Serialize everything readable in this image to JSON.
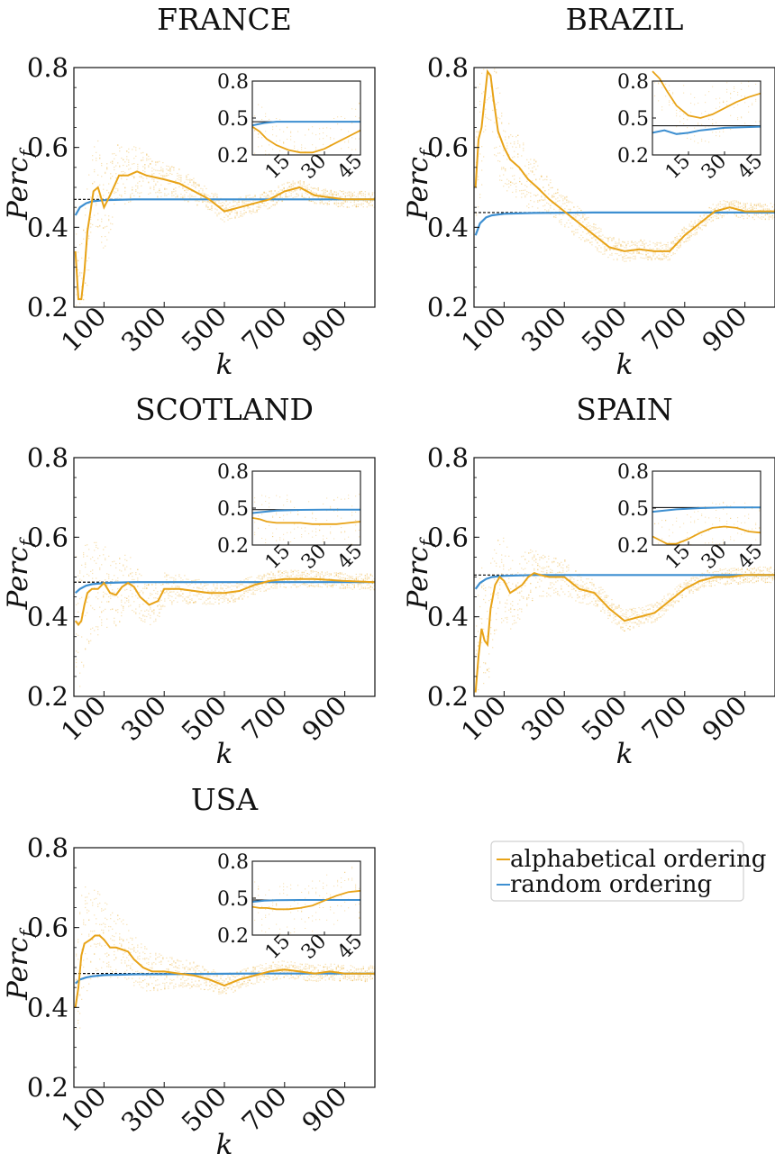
{
  "colors": {
    "alphabetical": "#E8A317",
    "random": "#3D8FD1",
    "reference": "#000000"
  },
  "legend": {
    "items": [
      {
        "label": "alphabetical ordering",
        "color": "#E8A317"
      },
      {
        "label": "random ordering",
        "color": "#3D8FD1"
      }
    ],
    "placement": "lower-right-empty-cell"
  },
  "chart_data": [
    {
      "type": "line",
      "title": "FRANCE",
      "xlabel": "k",
      "ylabel": "Perc_f",
      "ylabel_display": "Perc",
      "ylabel_sub": "f",
      "xlim": [
        0,
        1000
      ],
      "ylim": [
        0.2,
        0.8
      ],
      "xticks": [
        "100",
        "300",
        "500",
        "700",
        "900"
      ],
      "yticks": [
        "0.2",
        "0.4",
        "0.6",
        "0.8"
      ],
      "reference": 0.47,
      "series": [
        {
          "name": "alphabetical ordering",
          "x": [
            5,
            15,
            25,
            35,
            45,
            55,
            65,
            80,
            100,
            120,
            150,
            180,
            210,
            240,
            270,
            300,
            350,
            400,
            450,
            500,
            550,
            600,
            650,
            700,
            750,
            800,
            850,
            900,
            950,
            1000
          ],
          "y": [
            0.34,
            0.22,
            0.22,
            0.29,
            0.39,
            0.44,
            0.49,
            0.5,
            0.45,
            0.48,
            0.53,
            0.53,
            0.54,
            0.53,
            0.525,
            0.52,
            0.51,
            0.49,
            0.47,
            0.44,
            0.45,
            0.46,
            0.47,
            0.49,
            0.5,
            0.48,
            0.475,
            0.47,
            0.47,
            0.47
          ]
        },
        {
          "name": "random ordering",
          "x": [
            5,
            20,
            40,
            60,
            100,
            200,
            400,
            600,
            800,
            1000
          ],
          "y": [
            0.43,
            0.45,
            0.46,
            0.465,
            0.468,
            0.47,
            0.47,
            0.47,
            0.47,
            0.47
          ]
        }
      ],
      "inset": {
        "xlim": [
          0,
          45
        ],
        "ylim": [
          0.2,
          0.8
        ],
        "xticks": [
          "15",
          "30",
          "45"
        ],
        "yticks": [
          "0.2",
          "0.5",
          "0.8"
        ],
        "alphabetical": {
          "x": [
            0,
            3,
            6,
            10,
            15,
            20,
            25,
            30,
            35,
            40,
            45
          ],
          "y": [
            0.43,
            0.39,
            0.33,
            0.28,
            0.24,
            0.22,
            0.22,
            0.25,
            0.3,
            0.35,
            0.4
          ]
        },
        "random": {
          "x": [
            0,
            5,
            10,
            20,
            30,
            45
          ],
          "y": [
            0.44,
            0.46,
            0.47,
            0.47,
            0.47,
            0.47
          ]
        }
      }
    },
    {
      "type": "line",
      "title": "BRAZIL",
      "xlabel": "k",
      "ylabel": "Perc_f",
      "ylabel_display": "Perc",
      "ylabel_sub": "f",
      "xlim": [
        0,
        1000
      ],
      "ylim": [
        0.2,
        0.8
      ],
      "xticks": [
        "100",
        "300",
        "500",
        "700",
        "900"
      ],
      "yticks": [
        "0.2",
        "0.4",
        "0.6",
        "0.8"
      ],
      "reference": 0.437,
      "series": [
        {
          "name": "alphabetical ordering",
          "x": [
            5,
            15,
            25,
            35,
            45,
            55,
            65,
            80,
            100,
            120,
            150,
            180,
            210,
            250,
            300,
            350,
            400,
            450,
            500,
            550,
            600,
            650,
            700,
            750,
            800,
            850,
            900,
            950,
            1000
          ],
          "y": [
            0.5,
            0.62,
            0.65,
            0.72,
            0.79,
            0.78,
            0.72,
            0.64,
            0.6,
            0.57,
            0.55,
            0.52,
            0.5,
            0.47,
            0.44,
            0.41,
            0.38,
            0.35,
            0.34,
            0.345,
            0.34,
            0.34,
            0.38,
            0.41,
            0.44,
            0.45,
            0.44,
            0.44,
            0.44
          ]
        },
        {
          "name": "random ordering",
          "x": [
            5,
            20,
            40,
            60,
            100,
            200,
            400,
            600,
            800,
            1000
          ],
          "y": [
            0.38,
            0.41,
            0.425,
            0.43,
            0.434,
            0.436,
            0.437,
            0.437,
            0.437,
            0.437
          ]
        }
      ],
      "inset": {
        "xlim": [
          0,
          45
        ],
        "ylim": [
          0.2,
          0.8
        ],
        "xticks": [
          "15",
          "30",
          "45"
        ],
        "yticks": [
          "0.2",
          "0.5",
          "0.8"
        ],
        "alphabetical": {
          "x": [
            0,
            3,
            6,
            10,
            15,
            20,
            25,
            30,
            35,
            40,
            45
          ],
          "y": [
            0.88,
            0.82,
            0.72,
            0.6,
            0.52,
            0.5,
            0.53,
            0.58,
            0.63,
            0.67,
            0.7
          ]
        },
        "random": {
          "x": [
            0,
            5,
            10,
            15,
            20,
            30,
            45
          ],
          "y": [
            0.38,
            0.4,
            0.37,
            0.38,
            0.4,
            0.42,
            0.43
          ]
        }
      }
    },
    {
      "type": "line",
      "title": "SCOTLAND",
      "xlabel": "k",
      "ylabel": "Perc_f",
      "ylabel_display": "Perc",
      "ylabel_sub": "f",
      "xlim": [
        0,
        1000
      ],
      "ylim": [
        0.2,
        0.8
      ],
      "xticks": [
        "100",
        "300",
        "500",
        "700",
        "900"
      ],
      "yticks": [
        "0.2",
        "0.4",
        "0.6",
        "0.8"
      ],
      "reference": 0.487,
      "series": [
        {
          "name": "alphabetical ordering",
          "x": [
            5,
            15,
            25,
            35,
            45,
            60,
            80,
            100,
            120,
            140,
            160,
            180,
            200,
            220,
            250,
            280,
            300,
            350,
            400,
            450,
            500,
            550,
            600,
            650,
            700,
            800,
            900,
            1000
          ],
          "y": [
            0.39,
            0.38,
            0.39,
            0.43,
            0.46,
            0.47,
            0.47,
            0.485,
            0.46,
            0.455,
            0.475,
            0.485,
            0.475,
            0.45,
            0.43,
            0.44,
            0.47,
            0.47,
            0.465,
            0.46,
            0.46,
            0.465,
            0.48,
            0.49,
            0.495,
            0.495,
            0.49,
            0.487
          ]
        },
        {
          "name": "random ordering",
          "x": [
            5,
            20,
            40,
            60,
            100,
            200,
            400,
            600,
            800,
            1000
          ],
          "y": [
            0.46,
            0.47,
            0.478,
            0.482,
            0.485,
            0.487,
            0.487,
            0.487,
            0.487,
            0.487
          ]
        }
      ],
      "inset": {
        "xlim": [
          0,
          45
        ],
        "ylim": [
          0.2,
          0.8
        ],
        "xticks": [
          "15",
          "30",
          "45"
        ],
        "yticks": [
          "0.2",
          "0.5",
          "0.8"
        ],
        "alphabetical": {
          "x": [
            0,
            3,
            6,
            10,
            15,
            20,
            25,
            30,
            35,
            40,
            45
          ],
          "y": [
            0.42,
            0.41,
            0.39,
            0.38,
            0.38,
            0.38,
            0.37,
            0.37,
            0.37,
            0.38,
            0.39
          ]
        },
        "random": {
          "x": [
            0,
            5,
            10,
            20,
            30,
            45
          ],
          "y": [
            0.46,
            0.47,
            0.48,
            0.485,
            0.487,
            0.487
          ]
        }
      }
    },
    {
      "type": "line",
      "title": "SPAIN",
      "xlabel": "k",
      "ylabel": "Perc_f",
      "ylabel_display": "Perc",
      "ylabel_sub": "f",
      "xlim": [
        0,
        1000
      ],
      "ylim": [
        0.2,
        0.8
      ],
      "xticks": [
        "100",
        "300",
        "500",
        "700",
        "900"
      ],
      "yticks": [
        "0.2",
        "0.4",
        "0.6",
        "0.8"
      ],
      "reference": 0.505,
      "series": [
        {
          "name": "alphabetical ordering",
          "x": [
            5,
            15,
            25,
            35,
            45,
            55,
            70,
            85,
            100,
            120,
            140,
            160,
            180,
            200,
            220,
            250,
            280,
            300,
            350,
            400,
            450,
            500,
            550,
            600,
            650,
            700,
            750,
            800,
            850,
            900,
            1000
          ],
          "y": [
            0.21,
            0.3,
            0.37,
            0.34,
            0.33,
            0.42,
            0.48,
            0.5,
            0.49,
            0.46,
            0.47,
            0.48,
            0.5,
            0.51,
            0.505,
            0.5,
            0.5,
            0.5,
            0.47,
            0.46,
            0.42,
            0.39,
            0.4,
            0.41,
            0.44,
            0.47,
            0.49,
            0.5,
            0.5,
            0.505,
            0.505
          ]
        },
        {
          "name": "random ordering",
          "x": [
            5,
            20,
            40,
            60,
            100,
            200,
            400,
            600,
            800,
            1000
          ],
          "y": [
            0.47,
            0.485,
            0.495,
            0.5,
            0.503,
            0.505,
            0.505,
            0.505,
            0.505,
            0.505
          ]
        }
      ],
      "inset": {
        "xlim": [
          0,
          45
        ],
        "ylim": [
          0.2,
          0.8
        ],
        "xticks": [
          "15",
          "30",
          "45"
        ],
        "yticks": [
          "0.2",
          "0.5",
          "0.8"
        ],
        "alphabetical": {
          "x": [
            0,
            3,
            6,
            10,
            15,
            20,
            25,
            30,
            35,
            40,
            45
          ],
          "y": [
            0.27,
            0.24,
            0.21,
            0.21,
            0.25,
            0.3,
            0.34,
            0.35,
            0.34,
            0.31,
            0.3
          ]
        },
        "random": {
          "x": [
            0,
            5,
            10,
            20,
            30,
            45
          ],
          "y": [
            0.47,
            0.48,
            0.49,
            0.5,
            0.505,
            0.505
          ]
        }
      }
    },
    {
      "type": "line",
      "title": "USA",
      "xlabel": "k",
      "ylabel": "Perc_f",
      "ylabel_display": "Perc",
      "ylabel_sub": "f",
      "xlim": [
        0,
        1000
      ],
      "ylim": [
        0.2,
        0.8
      ],
      "xticks": [
        "100",
        "300",
        "500",
        "700",
        "900"
      ],
      "yticks": [
        "0.2",
        "0.4",
        "0.6",
        "0.8"
      ],
      "reference": 0.485,
      "series": [
        {
          "name": "alphabetical ordering",
          "x": [
            5,
            15,
            25,
            35,
            45,
            55,
            70,
            85,
            100,
            120,
            140,
            160,
            180,
            200,
            230,
            260,
            300,
            350,
            400,
            450,
            500,
            550,
            600,
            650,
            700,
            750,
            800,
            850,
            900,
            1000
          ],
          "y": [
            0.4,
            0.45,
            0.53,
            0.56,
            0.565,
            0.57,
            0.58,
            0.58,
            0.57,
            0.55,
            0.55,
            0.545,
            0.54,
            0.52,
            0.5,
            0.49,
            0.49,
            0.485,
            0.48,
            0.47,
            0.455,
            0.47,
            0.48,
            0.49,
            0.495,
            0.49,
            0.485,
            0.49,
            0.485,
            0.485
          ]
        },
        {
          "name": "random ordering",
          "x": [
            5,
            20,
            40,
            60,
            100,
            200,
            400,
            600,
            800,
            1000
          ],
          "y": [
            0.46,
            0.47,
            0.475,
            0.478,
            0.481,
            0.483,
            0.484,
            0.485,
            0.485,
            0.485
          ]
        }
      ],
      "inset": {
        "xlim": [
          0,
          45
        ],
        "ylim": [
          0.2,
          0.8
        ],
        "xticks": [
          "15",
          "30",
          "45"
        ],
        "yticks": [
          "0.2",
          "0.5",
          "0.8"
        ],
        "alphabetical": {
          "x": [
            0,
            3,
            6,
            10,
            15,
            20,
            25,
            30,
            35,
            40,
            45
          ],
          "y": [
            0.43,
            0.42,
            0.42,
            0.41,
            0.41,
            0.42,
            0.44,
            0.48,
            0.52,
            0.55,
            0.56
          ]
        },
        "random": {
          "x": [
            0,
            5,
            10,
            20,
            30,
            45
          ],
          "y": [
            0.47,
            0.48,
            0.483,
            0.485,
            0.485,
            0.485
          ]
        }
      }
    }
  ]
}
